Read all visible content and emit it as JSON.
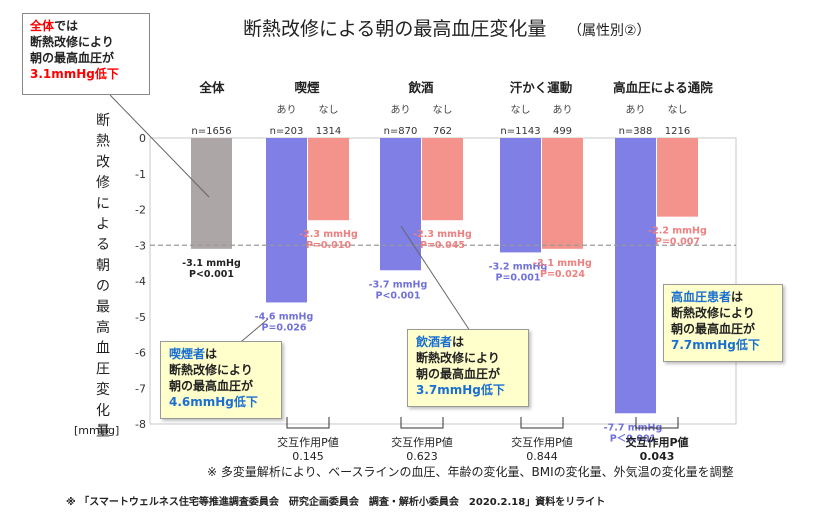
{
  "title": "断熱改修による朝の最高血圧変化量",
  "subtitle": "（属性別②）",
  "y_axis_label": "断熱改修による朝の最高血圧変化量",
  "y_unit": "[mmHg]",
  "footnote": "※ 多変量解析により、ベースラインの血圧、年齢の変化量、BMIの変化量、外気温の変化量を調整",
  "source": "※ 「スマートウェルネス住宅等推進調査委員会　研究企画委員会　調査・解析小委員会　2020.2.18」資料をリライト",
  "reference_line": -3,
  "colors": {
    "gray": "#aca6a6",
    "purple": "#7f7fe6",
    "pink": "#f4938c",
    "purple_text": "#7070dd",
    "pink_text": "#ee8080",
    "red": "#ff0000",
    "blue": "#1a6fd0",
    "callout_bg": "#ffffcc"
  },
  "chart_data": {
    "type": "bar",
    "ylim": [
      -8,
      0
    ],
    "yticks": [
      "0",
      "-1",
      "-2",
      "-3",
      "-4",
      "-5",
      "-6",
      "-7",
      "-8"
    ],
    "groups": [
      {
        "label": "全体",
        "interaction_label": "",
        "interaction_p": "",
        "interaction_bold": false,
        "bars": [
          {
            "sub": "",
            "n": "n=1656",
            "value": -3.1,
            "value_label": "-3.1 mmHg",
            "p_label": "P<0.001",
            "color": "gray"
          }
        ]
      },
      {
        "label": "喫煙",
        "interaction_label": "交互作用P値",
        "interaction_p": "0.145",
        "interaction_bold": false,
        "bars": [
          {
            "sub": "あり",
            "n": "n=203",
            "value": -4.6,
            "value_label": "-4.6 mmHg",
            "p_label": "P=0.026",
            "color": "purple"
          },
          {
            "sub": "なし",
            "n": "1314",
            "value": -2.3,
            "value_label": "-2.3 mmHg",
            "p_label": "P=0.010",
            "color": "pink"
          }
        ]
      },
      {
        "label": "飲酒",
        "interaction_label": "交互作用P値",
        "interaction_p": "0.623",
        "interaction_bold": false,
        "bars": [
          {
            "sub": "あり",
            "n": "n=870",
            "value": -3.7,
            "value_label": "-3.7 mmHg",
            "p_label": "P<0.001",
            "color": "purple"
          },
          {
            "sub": "なし",
            "n": "762",
            "value": -2.3,
            "value_label": "-2.3 mmHg",
            "p_label": "P=0.045",
            "color": "pink"
          }
        ]
      },
      {
        "label": "汗かく運動",
        "interaction_label": "交互作用P値",
        "interaction_p": "0.844",
        "interaction_bold": false,
        "bars": [
          {
            "sub": "なし",
            "n": "n=1143",
            "value": -3.2,
            "value_label": "-3.2 mmHg",
            "p_label": "P=0.001",
            "color": "purple"
          },
          {
            "sub": "あり",
            "n": "499",
            "value": -3.1,
            "value_label": "-3.1 mmHg",
            "p_label": "P=0.024",
            "color": "pink"
          }
        ]
      },
      {
        "label": "高血圧による通院",
        "interaction_label": "交互作用P値",
        "interaction_p": "0.043",
        "interaction_bold": true,
        "bars": [
          {
            "sub": "あり",
            "n": "n=388",
            "value": -7.7,
            "value_label": "-7.7 mmHg",
            "p_label": "P＜0.001",
            "color": "purple"
          },
          {
            "sub": "なし",
            "n": "1216",
            "value": -2.2,
            "value_label": "-2.2 mmHg",
            "p_label": "P=0.007",
            "color": "pink"
          }
        ]
      }
    ]
  },
  "callouts": {
    "overall": {
      "line1_red": "全体",
      "line1_rest": "では",
      "line2": "断熱改修により",
      "line3": "朝の最高血圧が",
      "line4": "3.1mmHg低下"
    },
    "smoker": {
      "line1_blue": "喫煙者",
      "line1_rest": "は",
      "line2": "断熱改修により",
      "line3": "朝の最高血圧が",
      "line4": "4.6mmHg低下"
    },
    "drinker": {
      "line1_blue": "飲酒者",
      "line1_rest": "は",
      "line2": "断熱改修により",
      "line3": "朝の最高血圧が",
      "line4": "3.7mmHg低下"
    },
    "hypertensive": {
      "line1_blue": "高血圧患者",
      "line1_rest": "は",
      "line2": "断熱改修により",
      "line3": "朝の最高血圧が",
      "line4": "7.7mmHg低下"
    }
  }
}
